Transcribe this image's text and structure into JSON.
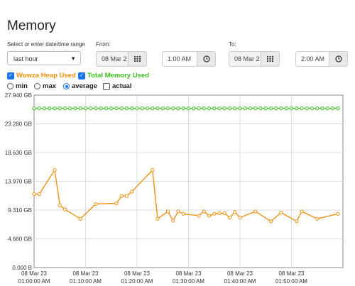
{
  "page": {
    "title": "Memory",
    "range_label": "Select or enter date/time range",
    "range_value": "last hour",
    "from_label": "From:",
    "from_date": "08 Mar 2",
    "from_time": "1:00 AM",
    "to_label": "To:",
    "to_date": "08 Mar 2",
    "to_time": "2:00 AM"
  },
  "series_toggles": [
    {
      "label": "Wowza Heap Used",
      "checked": true,
      "color": "#f29111"
    },
    {
      "label": "Total Memory Used",
      "checked": true,
      "color": "#3ec11e"
    }
  ],
  "aggregation": [
    {
      "label": "min",
      "checked": false,
      "type": "radio"
    },
    {
      "label": "max",
      "checked": false,
      "type": "radio"
    },
    {
      "label": "average",
      "checked": true,
      "type": "radio"
    },
    {
      "label": "actual",
      "checked": false,
      "type": "checkbox"
    }
  ],
  "icons": {
    "calendar": "calendar-grid-icon",
    "clock": "clock-icon",
    "caret": "chevron-down-icon"
  },
  "chart_data": {
    "type": "line",
    "ylim": [
      0,
      27.94
    ],
    "y_ticks": [
      "0.000 B",
      "4.660 GB",
      "9.310 GB",
      "13.970 GB",
      "18.630 GB",
      "23.280 GB",
      "27.940 GB"
    ],
    "y_tick_values": [
      0,
      4.66,
      9.31,
      13.97,
      18.63,
      23.28,
      27.94
    ],
    "xlim": [
      0,
      60
    ],
    "x_ticks": [
      {
        "date": "08 Mar 23",
        "time": "01:00:00 AM",
        "value": 0
      },
      {
        "date": "08 Mar 23",
        "time": "01:10:00 AM",
        "value": 10
      },
      {
        "date": "08 Mar 23",
        "time": "01:20:00 AM",
        "value": 20
      },
      {
        "date": "08 Mar 23",
        "time": "01:30:00 AM",
        "value": 30
      },
      {
        "date": "08 Mar 23",
        "time": "01:40:00 AM",
        "value": 40
      },
      {
        "date": "08 Mar 23",
        "time": "01:50:00 AM",
        "value": 50
      }
    ],
    "series": [
      {
        "color": "#3ec11e",
        "x": [
          0,
          1,
          2,
          3,
          4,
          5,
          6,
          7,
          8,
          9,
          10,
          11,
          12,
          13,
          14,
          15,
          16,
          17,
          18,
          19,
          20,
          21,
          22,
          23,
          24,
          25,
          26,
          27,
          28,
          29,
          30,
          31,
          32,
          33,
          34,
          35,
          36,
          37,
          38,
          39,
          40,
          41,
          42,
          43,
          44,
          45,
          46,
          47,
          48,
          49,
          50,
          51,
          52,
          53,
          54,
          55,
          56,
          57,
          58,
          59
        ],
        "values": [
          25.8,
          25.8,
          25.8,
          25.8,
          25.8,
          25.8,
          25.8,
          25.8,
          25.8,
          25.8,
          25.8,
          25.8,
          25.8,
          25.8,
          25.8,
          25.8,
          25.8,
          25.8,
          25.8,
          25.8,
          25.8,
          25.8,
          25.8,
          25.8,
          25.8,
          25.8,
          25.8,
          25.8,
          25.8,
          25.8,
          25.8,
          25.8,
          25.8,
          25.8,
          25.8,
          25.8,
          25.8,
          25.8,
          25.8,
          25.8,
          25.8,
          25.8,
          25.8,
          25.8,
          25.8,
          25.8,
          25.8,
          25.8,
          25.8,
          25.8,
          25.8,
          25.8,
          25.8,
          25.8,
          25.8,
          25.8,
          25.8,
          25.8,
          25.8,
          25.8
        ]
      },
      {
        "color": "#f29111",
        "x": [
          0,
          1,
          4,
          5,
          6,
          9,
          12,
          16,
          17,
          18,
          19,
          23,
          24,
          26,
          27,
          28,
          29,
          32,
          33,
          34,
          35,
          36,
          37,
          38,
          39,
          40,
          43,
          46,
          48,
          51,
          52,
          55,
          59
        ],
        "values": [
          11.9,
          11.9,
          15.8,
          10.1,
          9.4,
          7.9,
          10.3,
          10.4,
          11.6,
          11.6,
          12.3,
          15.8,
          7.9,
          9.1,
          7.6,
          9.1,
          8.7,
          8.4,
          9.1,
          8.4,
          8.7,
          8.8,
          8.8,
          8.1,
          9.0,
          8.1,
          9.1,
          7.5,
          8.9,
          7.5,
          9.1,
          7.9,
          8.7
        ]
      }
    ]
  }
}
